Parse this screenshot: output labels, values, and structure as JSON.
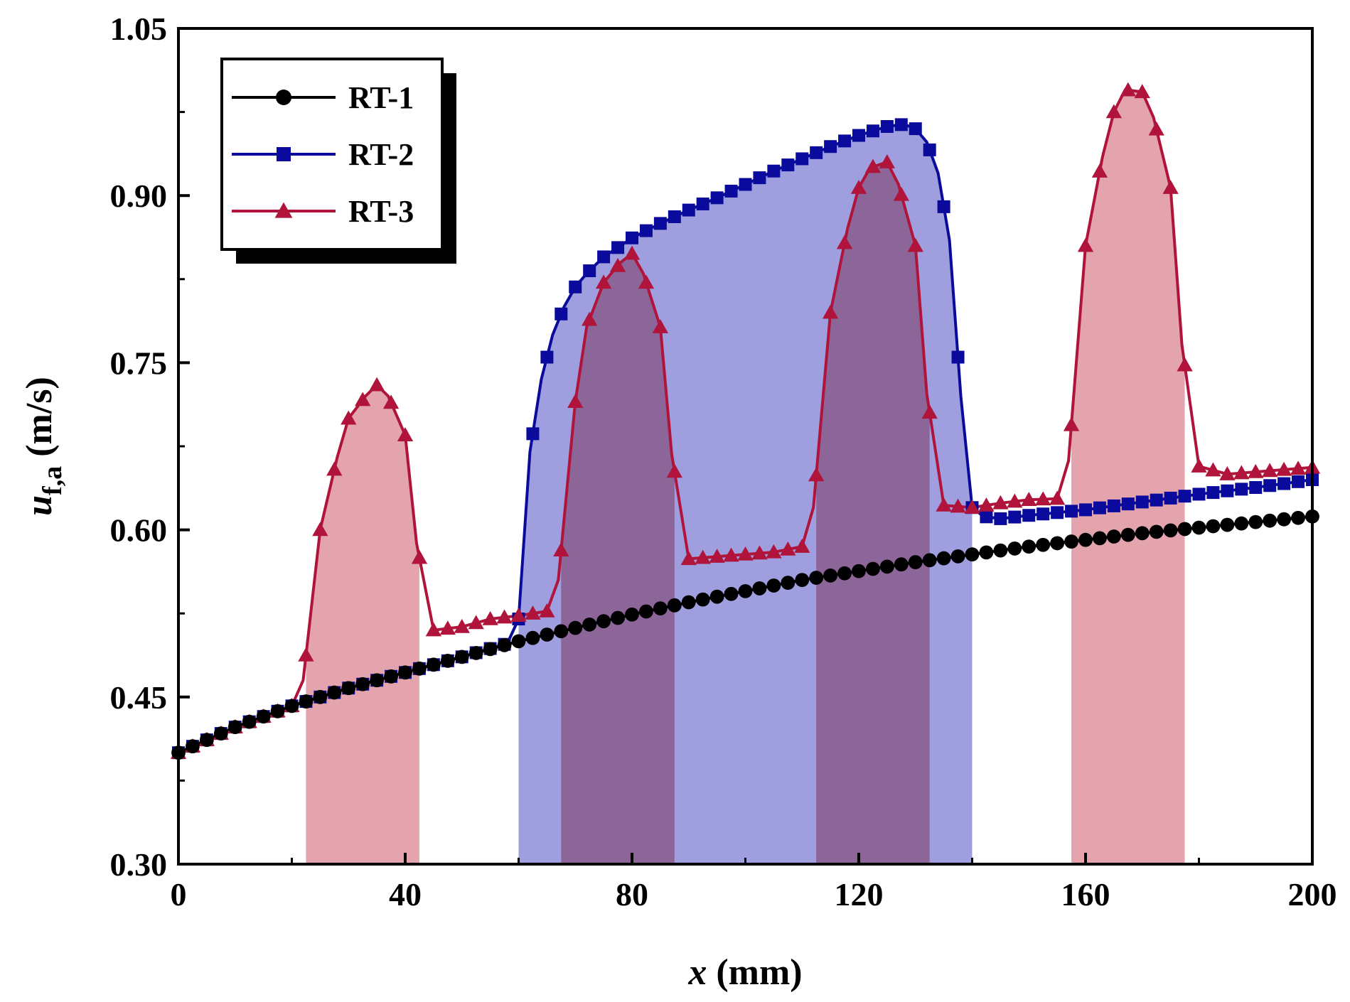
{
  "chart_data": {
    "type": "line",
    "title": "",
    "xlabel": {
      "var": "x",
      "unit": " (mm)"
    },
    "ylabel": {
      "var": "u",
      "sub": "f,a",
      "unit": " (m/s)"
    },
    "xlim": [
      0,
      200
    ],
    "ylim": [
      0.3,
      1.05
    ],
    "xticks": [
      0,
      40,
      80,
      120,
      160,
      200
    ],
    "xtick_labels": [
      "0",
      "40",
      "80",
      "120",
      "160",
      "200"
    ],
    "yticks": [
      0.3,
      0.45,
      0.6,
      0.75,
      0.9,
      1.05
    ],
    "ytick_labels": [
      "0.30",
      "0.45",
      "0.60",
      "0.75",
      "0.90",
      "1.05"
    ],
    "legend_position": "top-left",
    "series": [
      {
        "name": "RT-1",
        "color": "#000000",
        "marker": "circle",
        "x": [
          0,
          10,
          20,
          30,
          40,
          50,
          60,
          70,
          80,
          90,
          100,
          110,
          120,
          130,
          140,
          150,
          160,
          170,
          180,
          190,
          200
        ],
        "y": [
          0.4,
          0.423,
          0.442,
          0.458,
          0.472,
          0.486,
          0.5,
          0.512,
          0.524,
          0.535,
          0.545,
          0.555,
          0.563,
          0.571,
          0.578,
          0.585,
          0.591,
          0.597,
          0.602,
          0.607,
          0.612
        ]
      },
      {
        "name": "RT-2",
        "color": "#0a0a9c",
        "marker": "square",
        "fill_color": "#9f9fe0",
        "x": [
          0,
          10,
          20,
          30,
          40,
          50,
          58,
          60,
          62,
          64,
          66,
          68,
          70,
          72,
          75,
          78,
          80,
          85,
          90,
          95,
          100,
          105,
          110,
          115,
          120,
          125,
          128,
          130,
          132,
          134,
          136,
          138,
          140,
          142,
          145,
          150,
          160,
          170,
          180,
          190,
          200
        ],
        "y": [
          0.4,
          0.423,
          0.442,
          0.458,
          0.472,
          0.486,
          0.498,
          0.52,
          0.67,
          0.735,
          0.775,
          0.8,
          0.818,
          0.83,
          0.845,
          0.855,
          0.862,
          0.875,
          0.887,
          0.898,
          0.91,
          0.922,
          0.933,
          0.944,
          0.954,
          0.962,
          0.964,
          0.96,
          0.948,
          0.92,
          0.86,
          0.72,
          0.62,
          0.612,
          0.61,
          0.613,
          0.618,
          0.625,
          0.632,
          0.638,
          0.645
        ]
      },
      {
        "name": "RT-3",
        "color": "#b0143a",
        "marker": "triangle",
        "fill_color": "#e3a4ae",
        "x": [
          0,
          10,
          20,
          22,
          25,
          28,
          30,
          33,
          35,
          37,
          40,
          42,
          45,
          50,
          55,
          60,
          65,
          67,
          70,
          72,
          75,
          78,
          80,
          82,
          85,
          87,
          90,
          95,
          100,
          105,
          110,
          112,
          115,
          118,
          120,
          122,
          125,
          127,
          130,
          132,
          135,
          140,
          145,
          150,
          155,
          157,
          160,
          163,
          165,
          167,
          170,
          172,
          175,
          177,
          180,
          185,
          190,
          195,
          200
        ],
        "y": [
          0.4,
          0.423,
          0.442,
          0.465,
          0.6,
          0.665,
          0.7,
          0.72,
          0.73,
          0.72,
          0.685,
          0.588,
          0.51,
          0.513,
          0.52,
          0.523,
          0.527,
          0.555,
          0.715,
          0.782,
          0.822,
          0.84,
          0.848,
          0.83,
          0.782,
          0.668,
          0.574,
          0.576,
          0.578,
          0.58,
          0.585,
          0.62,
          0.795,
          0.87,
          0.907,
          0.925,
          0.93,
          0.91,
          0.855,
          0.722,
          0.622,
          0.62,
          0.624,
          0.627,
          0.628,
          0.662,
          0.855,
          0.935,
          0.975,
          0.995,
          0.993,
          0.97,
          0.907,
          0.766,
          0.657,
          0.65,
          0.652,
          0.654,
          0.656
        ]
      }
    ],
    "shaded_regions": [
      {
        "series": "RT-2",
        "x_start": 60,
        "x_end": 140
      },
      {
        "series": "RT-3",
        "x_start": 22.5,
        "x_end": 42.5
      },
      {
        "series": "RT-3",
        "x_start": 67.5,
        "x_end": 87.5
      },
      {
        "series": "RT-3",
        "x_start": 112.5,
        "x_end": 132.5
      },
      {
        "series": "RT-3",
        "x_start": 157.5,
        "x_end": 177.5
      }
    ]
  }
}
